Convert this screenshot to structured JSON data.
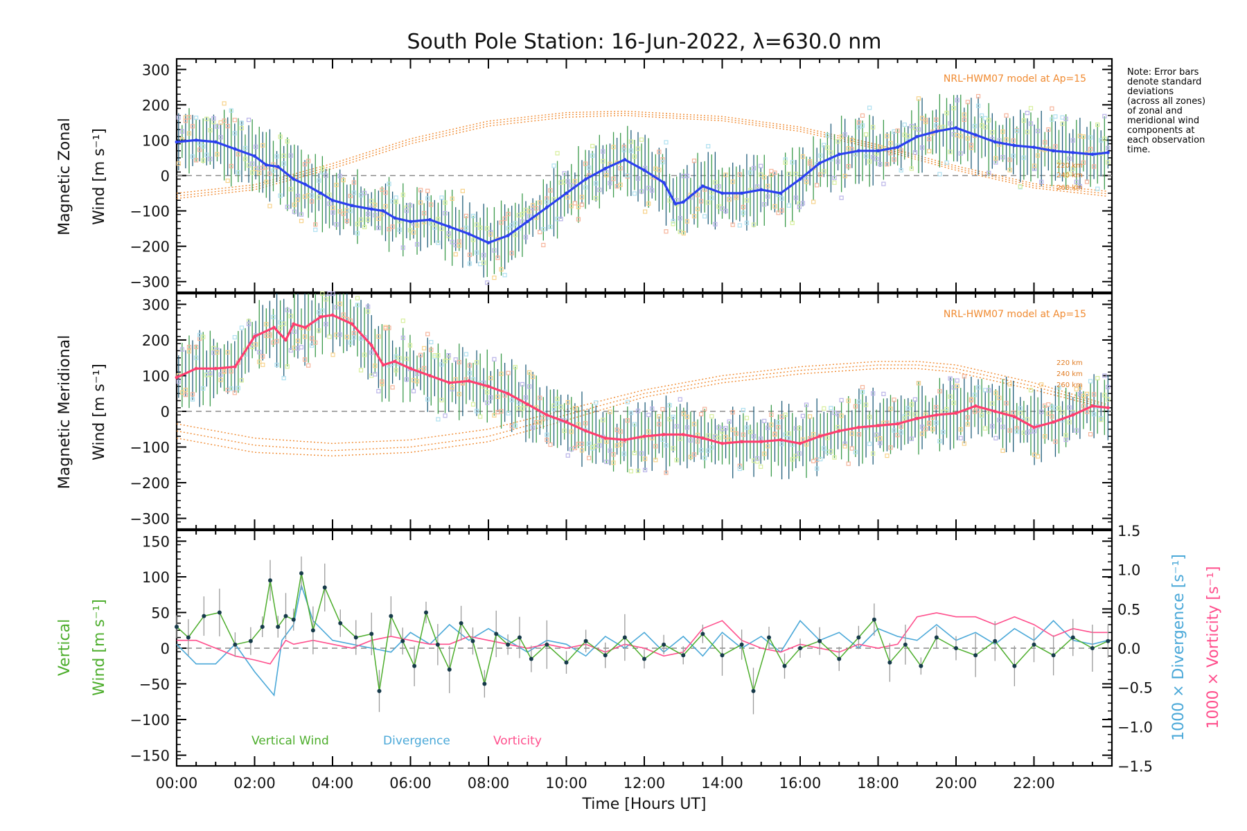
{
  "chart_data": [
    {
      "type": "line",
      "panel": "zonal",
      "title": "South Pole Station: 16-Jun-2022, λ=630.0 nm",
      "ylabel": [
        "Magnetic Zonal",
        "Wind [m s⁻¹]"
      ],
      "ylim": [
        -330,
        330
      ],
      "yticks": [
        300,
        200,
        100,
        0,
        -100,
        -200,
        -300
      ],
      "ytick_labels": [
        "300",
        "200",
        "100",
        "0",
        "−100",
        "−200",
        "−300"
      ],
      "model_label": "NRL-HWM07 model at Ap=15",
      "altitude_labels": [
        "220 km",
        "240 km",
        "260 km"
      ],
      "note": [
        "Note: Error bars",
        "denote standard",
        "deviations",
        "(across all zones)",
        "of zonal and",
        "meridional wind",
        "components at",
        "each observation",
        "time."
      ],
      "series": [
        {
          "name": "zonal wind",
          "color": "#2a3ff0",
          "x": [
            0.0,
            0.5,
            1.0,
            1.5,
            2.0,
            2.3,
            2.6,
            3.0,
            3.3,
            3.7,
            4.0,
            4.5,
            5.0,
            5.3,
            5.6,
            6.0,
            6.5,
            7.0,
            7.5,
            8.0,
            8.5,
            9.0,
            9.5,
            10.0,
            10.5,
            11.0,
            11.5,
            12.0,
            12.5,
            12.8,
            13.0,
            13.5,
            14.0,
            14.5,
            15.0,
            15.5,
            16.0,
            16.5,
            17.0,
            17.5,
            18.0,
            18.5,
            19.0,
            19.5,
            20.0,
            20.5,
            21.0,
            21.5,
            22.0,
            22.5,
            23.0,
            23.5,
            23.9
          ],
          "y": [
            95,
            100,
            95,
            75,
            55,
            30,
            25,
            -10,
            -25,
            -50,
            -70,
            -85,
            -95,
            -100,
            -120,
            -130,
            -125,
            -145,
            -165,
            -190,
            -170,
            -130,
            -90,
            -50,
            -10,
            20,
            45,
            15,
            -20,
            -80,
            -75,
            -30,
            -50,
            -50,
            -40,
            -50,
            -10,
            35,
            60,
            70,
            70,
            80,
            110,
            125,
            135,
            115,
            95,
            85,
            80,
            70,
            65,
            60,
            65
          ]
        }
      ],
      "model_series": [
        {
          "name": "220 km",
          "x": [
            0,
            2,
            4,
            6,
            8,
            10,
            11.5,
            14,
            16,
            18,
            20,
            22,
            24
          ],
          "y": [
            -65,
            -40,
            20,
            90,
            140,
            165,
            170,
            155,
            125,
            75,
            15,
            -35,
            -60
          ]
        },
        {
          "name": "240 km",
          "x": [
            0,
            2,
            4,
            6,
            8,
            10,
            11.5,
            14,
            16,
            18,
            20,
            22,
            24
          ],
          "y": [
            -58,
            -33,
            27,
            97,
            147,
            172,
            176,
            161,
            131,
            81,
            21,
            -29,
            -53
          ]
        },
        {
          "name": "260 km",
          "x": [
            0,
            2,
            4,
            6,
            8,
            10,
            11.5,
            14,
            16,
            18,
            20,
            22,
            24
          ],
          "y": [
            -50,
            -26,
            34,
            104,
            154,
            178,
            182,
            167,
            137,
            87,
            27,
            -23,
            -46
          ]
        }
      ]
    },
    {
      "type": "line",
      "panel": "meridional",
      "ylabel": [
        "Magnetic Meridional",
        "Wind [m s⁻¹]"
      ],
      "ylim": [
        -330,
        330
      ],
      "yticks": [
        300,
        200,
        100,
        0,
        -100,
        -200,
        -300
      ],
      "ytick_labels": [
        "300",
        "200",
        "100",
        "0",
        "−100",
        "−200",
        "−300"
      ],
      "model_label": "NRL-HWM07 model at Ap=15",
      "altitude_labels": [
        "220 km",
        "240 km",
        "260 km"
      ],
      "series": [
        {
          "name": "meridional wind",
          "color": "#ff3d6e",
          "x": [
            0.0,
            0.5,
            1.0,
            1.5,
            2.0,
            2.5,
            2.8,
            3.0,
            3.3,
            3.7,
            4.0,
            4.5,
            5.0,
            5.3,
            5.6,
            6.0,
            6.5,
            7.0,
            7.5,
            8.0,
            8.5,
            9.0,
            9.5,
            10.0,
            10.5,
            11.0,
            11.5,
            12.0,
            12.5,
            13.0,
            13.5,
            14.0,
            14.5,
            15.0,
            15.5,
            16.0,
            16.5,
            17.0,
            17.5,
            18.0,
            18.5,
            19.0,
            19.5,
            20.0,
            20.5,
            21.0,
            21.5,
            22.0,
            22.5,
            23.0,
            23.5,
            23.9
          ],
          "y": [
            95,
            120,
            120,
            125,
            210,
            235,
            200,
            245,
            235,
            265,
            270,
            245,
            185,
            130,
            140,
            120,
            100,
            80,
            85,
            70,
            50,
            20,
            -10,
            -30,
            -55,
            -75,
            -80,
            -70,
            -65,
            -65,
            -75,
            -90,
            -85,
            -85,
            -80,
            -90,
            -70,
            -55,
            -45,
            -40,
            -35,
            -20,
            -10,
            -5,
            15,
            0,
            -15,
            -45,
            -30,
            -10,
            15,
            10
          ]
        }
      ],
      "model_series": [
        {
          "name": "220 km",
          "x": [
            0,
            2,
            4,
            6,
            8,
            10,
            12,
            14,
            16,
            18,
            19,
            20,
            22,
            24
          ],
          "y": [
            -35,
            -75,
            -90,
            -80,
            -50,
            5,
            60,
            100,
            125,
            140,
            140,
            130,
            80,
            15
          ]
        },
        {
          "name": "240 km",
          "x": [
            0,
            2,
            4,
            6,
            8,
            10,
            12,
            14,
            16,
            18,
            19,
            20,
            22,
            24
          ],
          "y": [
            -55,
            -95,
            -110,
            -100,
            -70,
            -10,
            50,
            90,
            115,
            130,
            130,
            120,
            70,
            10
          ]
        },
        {
          "name": "260 km",
          "x": [
            0,
            2,
            4,
            6,
            8,
            10,
            12,
            14,
            16,
            18,
            19,
            20,
            22,
            24
          ],
          "y": [
            -75,
            -115,
            -125,
            -115,
            -85,
            -25,
            40,
            80,
            105,
            120,
            120,
            110,
            60,
            5
          ]
        }
      ]
    },
    {
      "type": "line",
      "panel": "vertical",
      "xlabel": "Time [Hours UT]",
      "xlim": [
        0,
        24
      ],
      "xticks": [
        0,
        2,
        4,
        6,
        8,
        10,
        12,
        14,
        16,
        18,
        20,
        22
      ],
      "xtick_labels": [
        "00:00",
        "02:00",
        "04:00",
        "06:00",
        "08:00",
        "10:00",
        "12:00",
        "14:00",
        "16:00",
        "18:00",
        "20:00",
        "22:00"
      ],
      "ylabel_left": [
        "Vertical",
        "Wind [m s⁻¹]"
      ],
      "ylim": [
        -165,
        165
      ],
      "yticks": [
        150,
        100,
        50,
        0,
        -50,
        -100,
        -150
      ],
      "ytick_labels": [
        "150",
        "100",
        "50",
        "0",
        "−50",
        "−100",
        "−150"
      ],
      "ylabel_right_1": "1000 × Divergence [s⁻¹]",
      "ylabel_right_2": "1000 × Vorticity [s⁻¹]",
      "right_ylim": [
        -1.5,
        1.5
      ],
      "right_yticks": [
        1.5,
        1.0,
        0.5,
        0.0,
        -0.5,
        -1.0,
        -1.5
      ],
      "right_ytick_labels": [
        "1.5",
        "1.0",
        "0.5",
        "0.0",
        "−0.5",
        "−1.0",
        "−1.5"
      ],
      "legend": [
        "Vertical Wind",
        "Divergence",
        "Vorticity"
      ],
      "series": [
        {
          "name": "Vertical Wind",
          "color": "#4cad2b",
          "x": [
            0.0,
            0.3,
            0.7,
            1.1,
            1.5,
            1.9,
            2.2,
            2.4,
            2.6,
            2.8,
            3.0,
            3.2,
            3.5,
            3.8,
            4.2,
            4.6,
            5.0,
            5.2,
            5.5,
            5.8,
            6.1,
            6.4,
            6.7,
            7.0,
            7.3,
            7.6,
            7.9,
            8.2,
            8.5,
            8.8,
            9.1,
            9.5,
            10.0,
            10.5,
            11.0,
            11.5,
            12.0,
            12.5,
            13.0,
            13.5,
            14.0,
            14.5,
            14.8,
            15.2,
            15.6,
            16.0,
            16.5,
            17.0,
            17.5,
            17.9,
            18.3,
            18.7,
            19.1,
            19.5,
            20.0,
            20.5,
            21.0,
            21.5,
            22.0,
            22.5,
            23.0,
            23.5,
            23.9
          ],
          "y": [
            30,
            15,
            45,
            50,
            5,
            10,
            30,
            95,
            30,
            45,
            40,
            105,
            25,
            85,
            35,
            15,
            20,
            -60,
            45,
            10,
            -25,
            50,
            5,
            -30,
            35,
            10,
            -50,
            20,
            5,
            15,
            -15,
            5,
            -20,
            10,
            -10,
            15,
            -15,
            5,
            -10,
            20,
            -10,
            5,
            -60,
            15,
            -25,
            0,
            10,
            -15,
            15,
            40,
            -20,
            5,
            -25,
            15,
            0,
            -10,
            10,
            -25,
            5,
            -10,
            15,
            0,
            10
          ]
        },
        {
          "name": "Divergence",
          "color": "#4aa8d8",
          "axis": "right",
          "x": [
            0.0,
            0.5,
            1.0,
            1.5,
            2.0,
            2.5,
            2.7,
            3.0,
            3.2,
            3.5,
            4.0,
            4.5,
            5.0,
            5.5,
            6.0,
            6.5,
            7.0,
            7.5,
            8.0,
            8.5,
            9.0,
            9.5,
            10.0,
            10.5,
            11.0,
            11.5,
            12.0,
            12.5,
            13.0,
            13.5,
            14.0,
            14.5,
            15.0,
            15.5,
            16.0,
            16.5,
            17.0,
            17.5,
            18.0,
            18.5,
            19.0,
            19.5,
            20.0,
            20.5,
            21.0,
            21.5,
            22.0,
            22.5,
            23.0,
            23.5,
            23.9
          ],
          "y": [
            0.05,
            -0.2,
            -0.2,
            0.05,
            -0.3,
            -0.6,
            0.1,
            0.3,
            0.8,
            0.35,
            0.1,
            0.05,
            0.0,
            -0.05,
            0.2,
            0.05,
            0.3,
            0.1,
            0.25,
            0.1,
            -0.05,
            0.1,
            0.05,
            -0.1,
            0.15,
            0.0,
            0.2,
            -0.05,
            0.15,
            -0.1,
            0.2,
            0.0,
            0.15,
            -0.05,
            0.35,
            0.1,
            0.2,
            0.0,
            0.25,
            0.15,
            0.1,
            0.3,
            0.1,
            0.2,
            0.05,
            0.25,
            0.1,
            0.35,
            0.1,
            0.05,
            0.1
          ]
        },
        {
          "name": "Vorticity",
          "color": "#ff4e8c",
          "axis": "right",
          "x": [
            0.0,
            0.5,
            1.0,
            1.5,
            2.0,
            2.4,
            2.6,
            2.8,
            3.0,
            3.5,
            4.0,
            4.5,
            5.0,
            5.5,
            6.0,
            6.5,
            7.0,
            7.5,
            8.0,
            8.5,
            9.0,
            9.5,
            10.0,
            10.5,
            11.0,
            11.5,
            12.0,
            12.5,
            13.0,
            13.5,
            14.0,
            14.5,
            15.0,
            15.5,
            16.0,
            16.5,
            17.0,
            17.5,
            18.0,
            18.5,
            19.0,
            19.5,
            20.0,
            20.5,
            21.0,
            21.5,
            22.0,
            22.5,
            23.0,
            23.5,
            23.9
          ],
          "y": [
            0.1,
            0.1,
            0.0,
            -0.1,
            -0.15,
            -0.2,
            -0.05,
            0.1,
            0.05,
            0.1,
            0.05,
            0.0,
            0.1,
            0.15,
            0.1,
            0.05,
            0.05,
            0.15,
            0.1,
            0.05,
            0.0,
            0.05,
            0.0,
            0.05,
            -0.05,
            0.05,
            0.0,
            -0.1,
            -0.05,
            0.25,
            0.35,
            0.1,
            0.0,
            -0.05,
            0.05,
            0.0,
            -0.05,
            0.05,
            0.0,
            0.05,
            0.4,
            0.45,
            0.4,
            0.4,
            0.3,
            0.4,
            0.3,
            0.15,
            0.25,
            0.2,
            0.2
          ]
        }
      ]
    }
  ]
}
